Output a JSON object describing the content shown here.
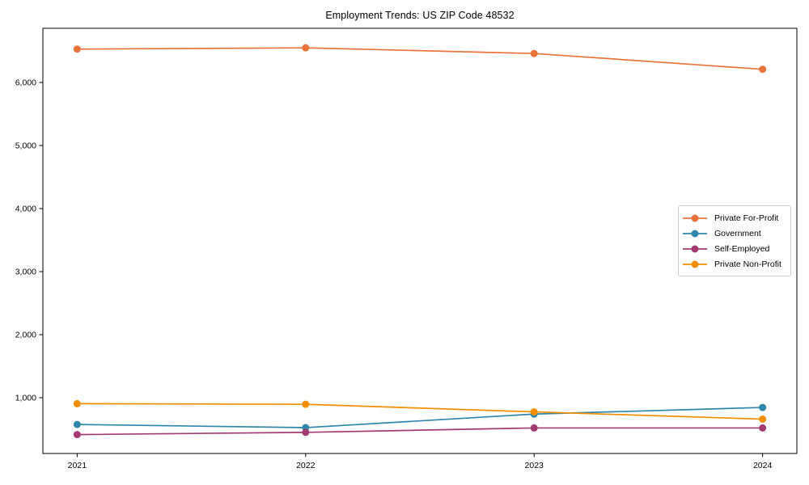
{
  "chart_data": {
    "type": "line",
    "title": "Employment Trends: US ZIP Code 48532",
    "xlabel": "",
    "ylabel": "",
    "x": [
      2021,
      2022,
      2023,
      2024
    ],
    "x_tick_labels": [
      "2021",
      "2022",
      "2023",
      "2024"
    ],
    "y_ticks": [
      1000,
      2000,
      3000,
      4000,
      5000,
      6000
    ],
    "y_tick_labels": [
      "1,000",
      "2,000",
      "3,000",
      "4,000",
      "5,000",
      "6,000"
    ],
    "xlim": [
      2020.85,
      2024.15
    ],
    "ylim": [
      115,
      6860
    ],
    "grid": false,
    "marker": "o",
    "legend_position": "center-right",
    "series": [
      {
        "name": "Private For-Profit",
        "color": "#E8743B",
        "values": [
          6530,
          6550,
          6460,
          6210
        ]
      },
      {
        "name": "Government",
        "color": "#2E86AB",
        "values": [
          575,
          525,
          740,
          845
        ]
      },
      {
        "name": "Self-Employed",
        "color": "#A23B72",
        "values": [
          415,
          450,
          520,
          520
        ]
      },
      {
        "name": "Private Non-Profit",
        "color": "#F18F01",
        "values": [
          905,
          895,
          775,
          660
        ]
      }
    ],
    "axis_color": "#000000",
    "background_color": "#ffffff"
  }
}
